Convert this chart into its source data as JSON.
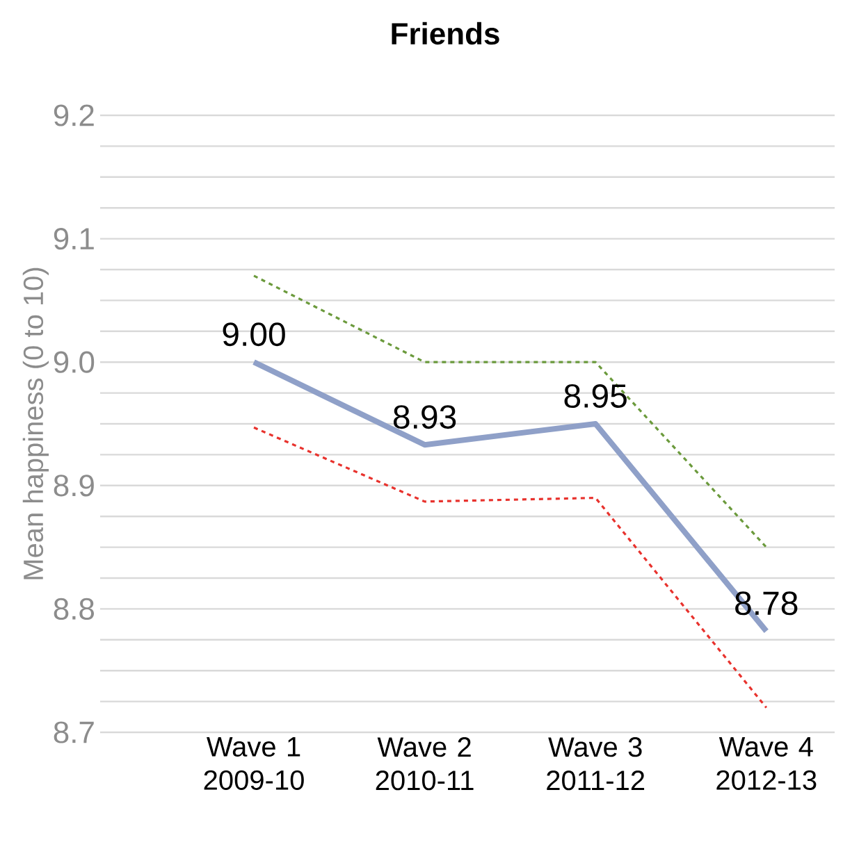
{
  "chart_data": {
    "type": "line",
    "title": "Friends",
    "ylabel": "Mean happiness (0 to 10)",
    "categories": [
      "Wave 1 2009-10",
      "Wave 2 2010-11",
      "Wave 3 2011-12",
      "Wave 4 2012-13"
    ],
    "series": [
      {
        "color": "#6b9a3c",
        "line_style": "dashed",
        "values": [
          9.07,
          9.0,
          9.0,
          8.85
        ]
      },
      {
        "color": "#e8322d",
        "line_style": "dashed",
        "values": [
          8.947,
          8.887,
          8.89,
          8.72
        ]
      },
      {
        "color": "#8fa0c8",
        "line_style": "solid",
        "values": [
          9.0,
          8.933,
          8.95,
          8.782
        ],
        "value_labels": [
          "9.00",
          "8.93",
          "8.95",
          "8.78"
        ]
      }
    ],
    "ylim": [
      8.7,
      9.2
    ],
    "yticks": [
      8.7,
      {
        "value": 8.725,
        "label": null
      },
      {
        "value": 8.75,
        "label": null
      },
      {
        "value": 8.775,
        "label": null
      },
      8.8,
      {
        "value": 8.825,
        "label": null
      },
      {
        "value": 8.85,
        "label": null
      },
      {
        "value": 8.875,
        "label": null
      },
      8.9,
      {
        "value": 8.925,
        "label": null
      },
      {
        "value": 8.95,
        "label": null
      },
      {
        "value": 8.975,
        "label": null
      },
      {
        "value": 9.0,
        "label": "9.0"
      },
      {
        "value": 9.025,
        "label": null
      },
      {
        "value": 9.05,
        "label": null
      },
      {
        "value": 9.075,
        "label": null
      },
      9.1,
      {
        "value": 9.125,
        "label": null
      },
      {
        "value": 9.15,
        "label": null
      },
      {
        "value": 9.175,
        "label": null
      },
      9.2
    ],
    "grid": "y",
    "marker": "none"
  }
}
